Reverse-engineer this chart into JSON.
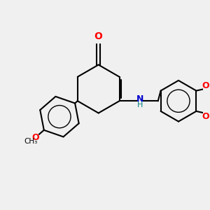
{
  "bg_color": "#f0f0f0",
  "bond_color": "#000000",
  "bond_width": 1.5,
  "o_color": "#ff0000",
  "n_color": "#0000cc",
  "h_color": "#008080",
  "figsize": [
    3.0,
    3.0
  ],
  "dpi": 100,
  "xlim": [
    0,
    10
  ],
  "ylim": [
    0,
    10
  ]
}
